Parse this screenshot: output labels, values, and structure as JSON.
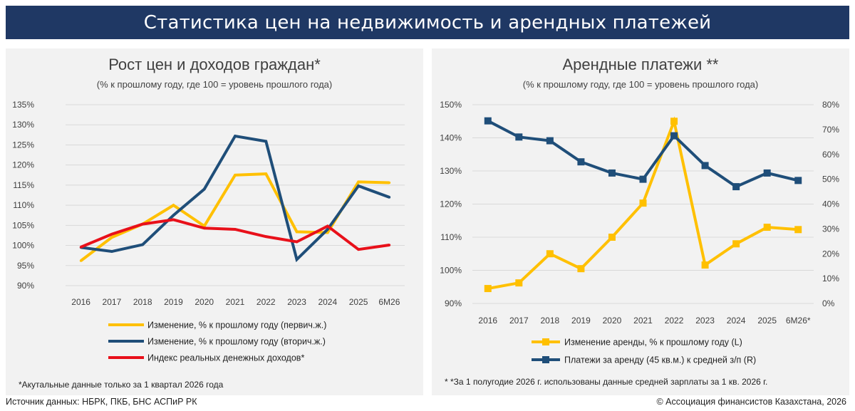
{
  "page_title": "Статистика цен на недвижимость и арендных платежей",
  "colors": {
    "banner": "#1f3864",
    "panel": "#f2f2f2",
    "gold": "#ffc000",
    "navy": "#1f4e79",
    "red": "#e8101a",
    "grid": "#d9d9d9"
  },
  "chart_data": [
    {
      "type": "line",
      "title": "Рост цен и доходов граждан*",
      "subtitle": "(% к прошлому году, где 100 = уровень прошлого года)",
      "categories": [
        "2016",
        "2017",
        "2018",
        "2019",
        "2020",
        "2021",
        "2022",
        "2023",
        "2024",
        "2025",
        "6M26"
      ],
      "y_ticks": [
        "135%",
        "130%",
        "125%",
        "120%",
        "115%",
        "110%",
        "105%",
        "100%",
        "95%",
        "90%"
      ],
      "ylim": [
        90,
        135
      ],
      "grid": true,
      "legend_position": "bottom",
      "series": [
        {
          "name": "Изменение, % к прошлому году (первич.ж.)",
          "color": "#ffc000",
          "values": [
            96.2,
            102.0,
            105.3,
            110.0,
            104.8,
            117.5,
            117.8,
            103.4,
            103.2,
            115.8,
            115.6
          ]
        },
        {
          "name": "Изменение, % к прошлому году (вторич.ж.)",
          "color": "#1f4e79",
          "values": [
            99.5,
            98.5,
            100.2,
            107.5,
            114.0,
            127.2,
            125.9,
            96.5,
            104.0,
            114.8,
            112.0
          ]
        },
        {
          "name": "Индекс реальных денежных доходов*",
          "color": "#e8101a",
          "values": [
            99.6,
            102.8,
            105.3,
            106.4,
            104.3,
            104.0,
            102.2,
            100.9,
            104.8,
            99.0,
            100.1
          ]
        }
      ],
      "footnote": "*Акутальные данные только за 1 квартал 2026 года"
    },
    {
      "type": "line",
      "title": "Арендные платежи **",
      "subtitle": "(% к прошлому году, где 100 = уровень прошлого года)",
      "categories": [
        "2016",
        "2017",
        "2018",
        "2019",
        "2020",
        "2021",
        "2022",
        "2023",
        "2024",
        "2025",
        "6M26*"
      ],
      "y_ticks_left": [
        "150%",
        "140%",
        "130%",
        "120%",
        "110%",
        "100%",
        "90%"
      ],
      "y_ticks_right": [
        "80%",
        "70%",
        "60%",
        "50%",
        "40%",
        "30%",
        "20%",
        "10%",
        "0%"
      ],
      "ylim_left": [
        90,
        150
      ],
      "ylim_right": [
        0,
        80
      ],
      "grid": true,
      "legend_position": "bottom",
      "series": [
        {
          "name": "Изменение аренды, % к прошлому году (L)",
          "axis": "left",
          "color": "#ffc000",
          "marker": "square",
          "values": [
            94.5,
            96.2,
            105.0,
            100.5,
            110.0,
            120.3,
            145.0,
            101.6,
            108.0,
            113.0,
            112.3
          ]
        },
        {
          "name": "Платежи за аренду (45 кв.м.) к средней з/п (R)",
          "axis": "right",
          "color": "#1f4e79",
          "marker": "square",
          "values": [
            73.5,
            67.0,
            65.5,
            57.0,
            52.5,
            50.0,
            67.5,
            55.5,
            47.0,
            52.5,
            49.5
          ]
        }
      ],
      "footnote": "* *За 1 полугодие 2026 г. использованы данные средней зарплаты за 1 кв. 2026 г."
    }
  ],
  "footer": {
    "source": "Источник данных: НБРК, ПКБ, БНС АСПиР РК",
    "copyright": "© Ассоциация финансистов Казахстана, 2026"
  }
}
